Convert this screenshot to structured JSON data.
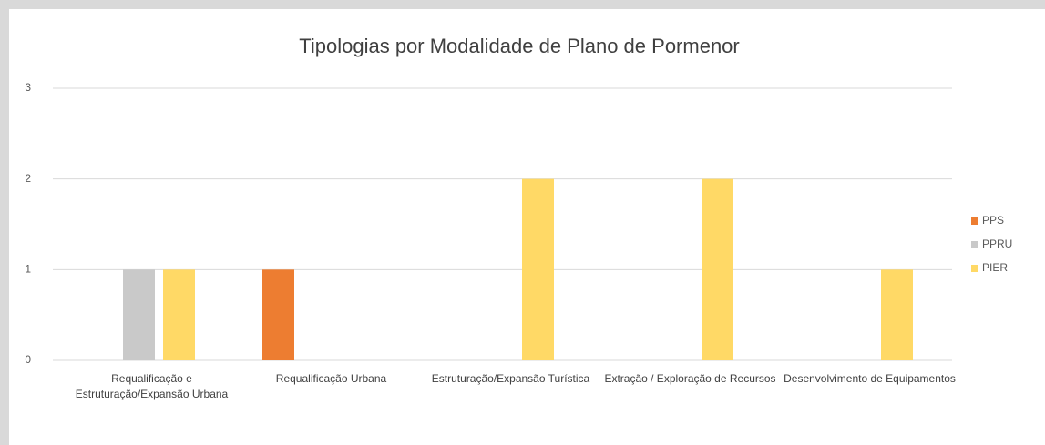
{
  "chart_data": {
    "type": "bar",
    "title": "Tipologias por Modalidade de Plano de Pormenor",
    "categories": [
      "Requalificação e Estruturação/Expansão Urbana",
      "Requalificação Urbana",
      "Estruturação/Expansão Turística",
      "Extração / Exploração de Recursos",
      "Desenvolvimento de Equipamentos"
    ],
    "series": [
      {
        "name": "PPS",
        "color": "#ed7d31",
        "values": [
          0,
          1,
          0,
          0,
          0
        ]
      },
      {
        "name": "PPRU",
        "color": "#c9c9c9",
        "values": [
          1,
          0,
          0,
          0,
          0
        ]
      },
      {
        "name": "PIER",
        "color": "#ffd966",
        "values": [
          1,
          0,
          2,
          2,
          1
        ]
      }
    ],
    "ylim": [
      0,
      3
    ],
    "yticks": [
      0,
      1,
      2,
      3
    ],
    "grid": true,
    "legend": "right"
  }
}
